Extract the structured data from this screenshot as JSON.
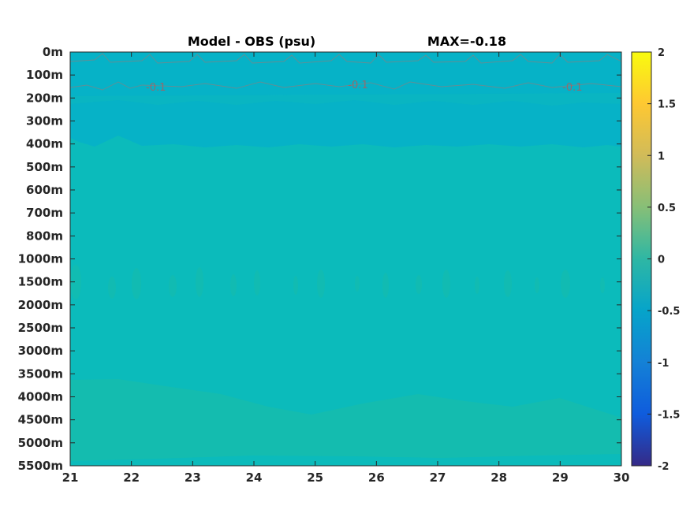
{
  "chart_data": {
    "type": "heatmap",
    "title": "Model - OBS (psu)",
    "max_label": "MAX=-0.18",
    "x_ticks": [
      "21",
      "22",
      "23",
      "24",
      "25",
      "26",
      "27",
      "28",
      "29",
      "30"
    ],
    "y_ticks": [
      "0m",
      "100m",
      "200m",
      "300m",
      "400m",
      "500m",
      "600m",
      "700m",
      "800m",
      "1000m",
      "1500m",
      "2000m",
      "2500m",
      "3000m",
      "3500m",
      "4000m",
      "4500m",
      "5000m",
      "5500m"
    ],
    "xlim": [
      21,
      30
    ],
    "colorbar": {
      "ticks": [
        "2",
        "1.5",
        "1",
        "0.5",
        "0",
        "-0.5",
        "-1",
        "-1.5",
        "-2"
      ],
      "range": [
        -2,
        2
      ],
      "colormap": "parula"
    },
    "contour_labels": [
      {
        "text": "-0.1",
        "x": 22.4,
        "depth": "150m"
      },
      {
        "text": "-0.1",
        "x": 25.7,
        "depth": "140m"
      },
      {
        "text": "-0.1",
        "x": 29.2,
        "depth": "150m"
      }
    ],
    "fields": [
      {
        "layer": "0m-400m",
        "value": -0.1,
        "color": "#06b2c7"
      },
      {
        "layer": "400m-3700m",
        "value": -0.05,
        "color": "#0bbbbb"
      },
      {
        "layer": "3700m-5400m",
        "value": 0.0,
        "color": "#14bcaf"
      },
      {
        "layer": "5400m-5500m",
        "value": -0.05,
        "color": "#0bbbbb"
      }
    ]
  }
}
